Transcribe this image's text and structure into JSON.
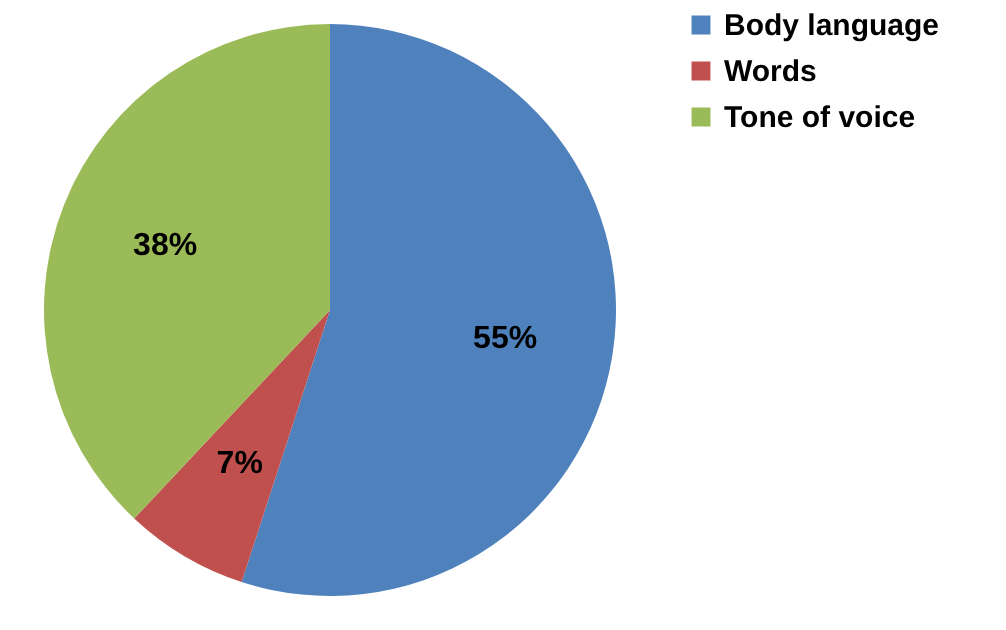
{
  "chart_data": {
    "type": "pie",
    "categories": [
      "Body language",
      "Words",
      "Tone of voice"
    ],
    "values": [
      55,
      7,
      38
    ],
    "colors": [
      "#4f81bd",
      "#c0504d",
      "#9bbb59"
    ],
    "value_labels": [
      "55%",
      "7%",
      "38%"
    ],
    "legend": "right"
  }
}
